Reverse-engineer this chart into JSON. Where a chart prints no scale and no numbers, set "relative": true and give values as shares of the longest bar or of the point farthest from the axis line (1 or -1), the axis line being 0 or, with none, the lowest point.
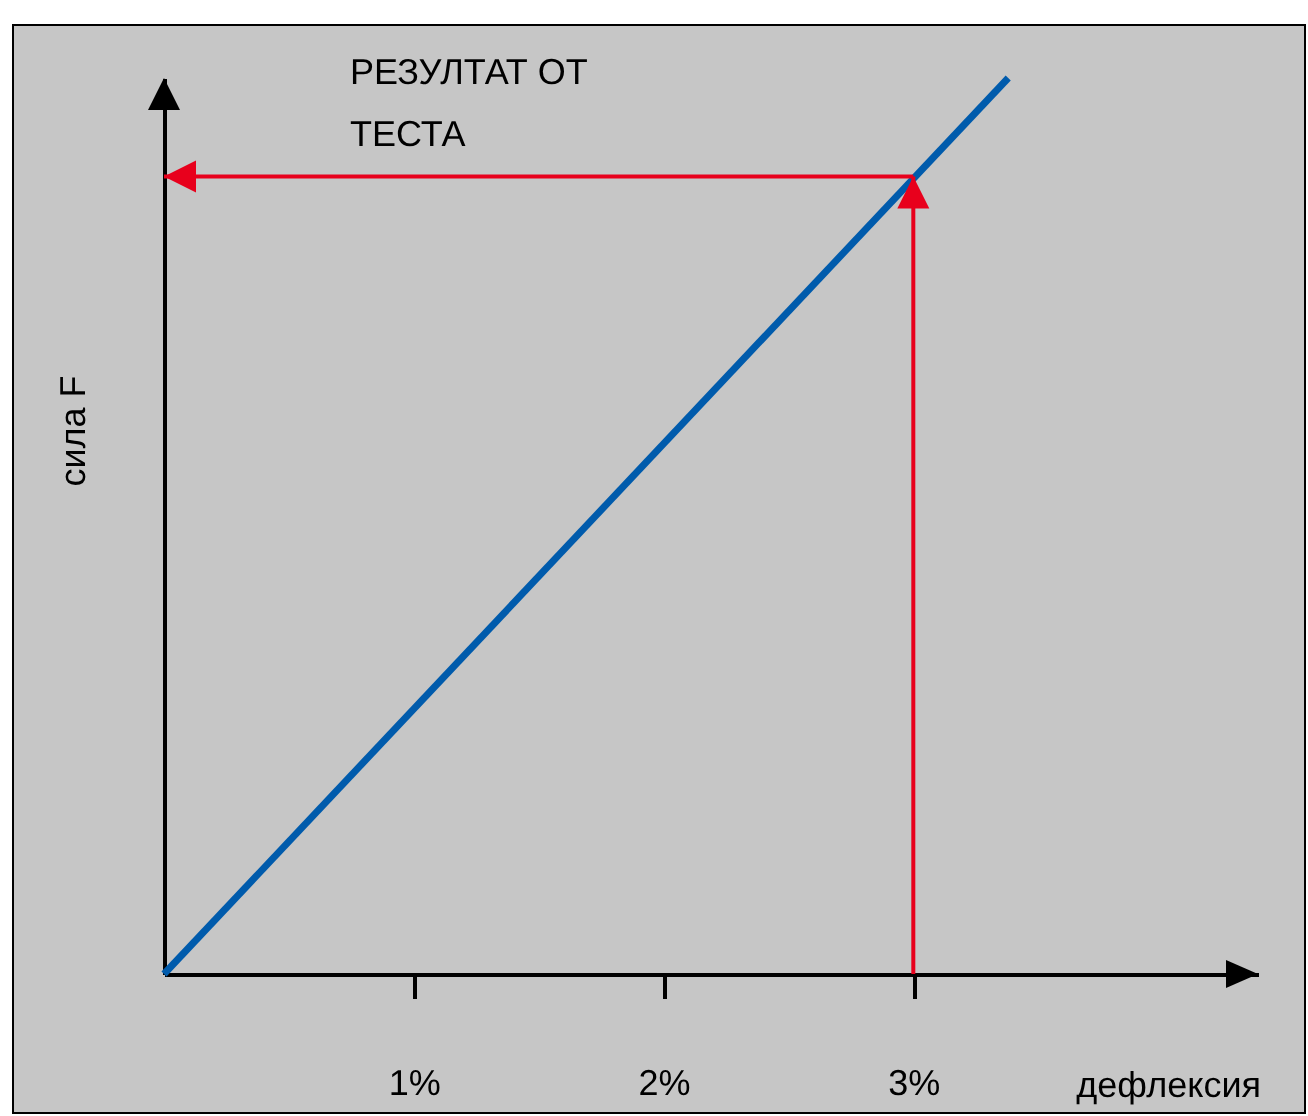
{
  "chart_data": {
    "type": "line",
    "relative": true,
    "xlabel": "дефлексия",
    "ylabel": "сила F",
    "x": [
      0,
      3.38
    ],
    "xlim": [
      0,
      4.38
    ],
    "xticks": [
      {
        "value": 1,
        "label": "1%"
      },
      {
        "value": 2,
        "label": "2%"
      },
      {
        "value": 3,
        "label": "3%"
      }
    ],
    "series": [
      {
        "color": "#005bac",
        "values": [
          0,
          1
        ]
      }
    ],
    "annotations": [
      "РЕЗУЛТАТ ОТ ТЕСТА"
    ],
    "ref_lines": [
      {
        "axis": "x",
        "value": 3,
        "color": "#e8001c"
      },
      {
        "axis": "y",
        "value": 0.89,
        "color": "#e8001c"
      }
    ],
    "grid": false,
    "marker": "none",
    "line_style": "solid"
  }
}
